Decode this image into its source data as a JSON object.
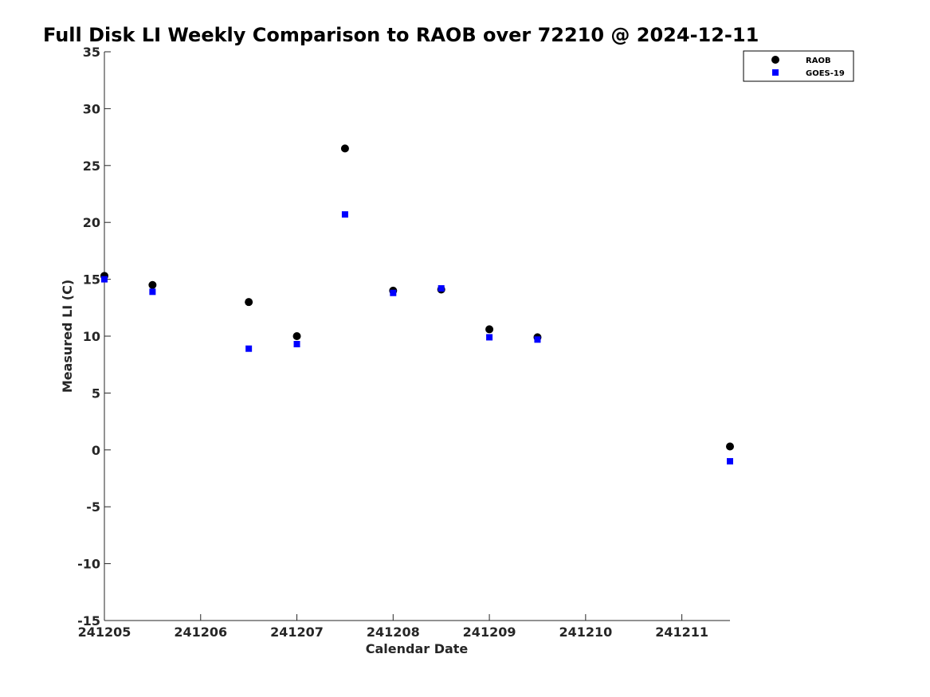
{
  "chart_data": {
    "type": "scatter",
    "title": "Full Disk LI Weekly Comparison to RAOB over 72210 @ 2024-12-11",
    "xlabel": "Calendar Date",
    "ylabel": "Measured LI (C)",
    "xlim": [
      "241205",
      "241211.5"
    ],
    "ylim": [
      -15,
      35
    ],
    "x_tick_labels": [
      "241205",
      "241206",
      "241207",
      "241208",
      "241209",
      "241210",
      "241211"
    ],
    "y_tick_values": [
      -15,
      -10,
      -5,
      0,
      5,
      10,
      15,
      20,
      25,
      30,
      35
    ],
    "grid": false,
    "legend_position": "top-right",
    "series": [
      {
        "name": "RAOB",
        "marker": "circle",
        "color": "#000000",
        "x": [
          "241205.0",
          "241205.5",
          "241206.5",
          "241207.0",
          "241207.5",
          "241208.0",
          "241208.5",
          "241209.0",
          "241209.5",
          "241211.5"
        ],
        "y": [
          15.3,
          14.5,
          13.0,
          10.0,
          26.5,
          14.0,
          14.1,
          10.6,
          9.9,
          0.3
        ]
      },
      {
        "name": "GOES-19",
        "marker": "square",
        "color": "#0000ff",
        "x": [
          "241205.0",
          "241205.5",
          "241206.5",
          "241207.0",
          "241207.5",
          "241208.0",
          "241208.5",
          "241209.0",
          "241209.5",
          "241211.5"
        ],
        "y": [
          15.0,
          13.9,
          8.9,
          9.3,
          20.7,
          13.8,
          14.2,
          9.9,
          9.7,
          -1.0
        ]
      }
    ]
  }
}
